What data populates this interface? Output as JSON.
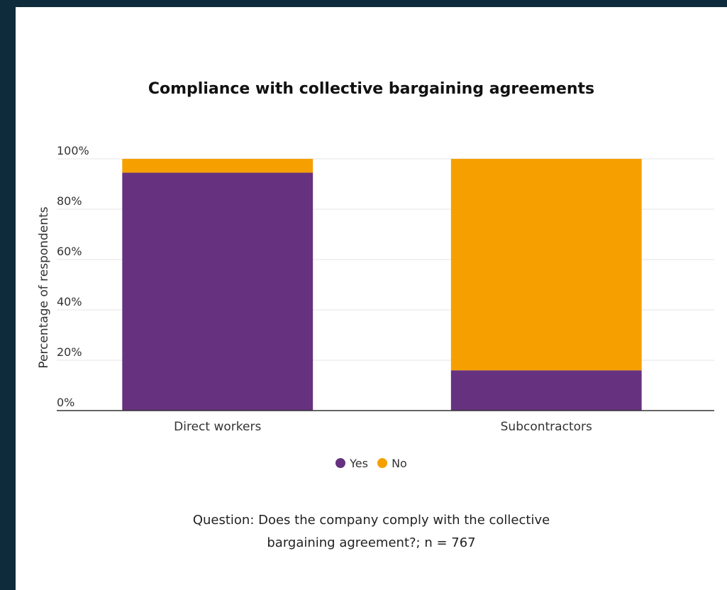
{
  "chart_data": {
    "type": "bar",
    "stacked": true,
    "title": "Compliance with collective bargaining agreements",
    "ylabel": "Percentage of respondents",
    "ylim": [
      0,
      100
    ],
    "y_ticks": [
      "0%",
      "20%",
      "40%",
      "60%",
      "80%",
      "100%"
    ],
    "categories": [
      "Direct workers",
      "Subcontractors"
    ],
    "series": [
      {
        "name": "Yes",
        "color": "#66327f",
        "values": [
          94.5,
          16
        ]
      },
      {
        "name": "No",
        "color": "#f5a000",
        "values": [
          5.5,
          84
        ]
      }
    ],
    "grid": true,
    "legend_position": "bottom-center"
  },
  "caption": {
    "line1": "Question: Does the company comply with the collective",
    "line2": "bargaining agreement?; n = 767"
  }
}
